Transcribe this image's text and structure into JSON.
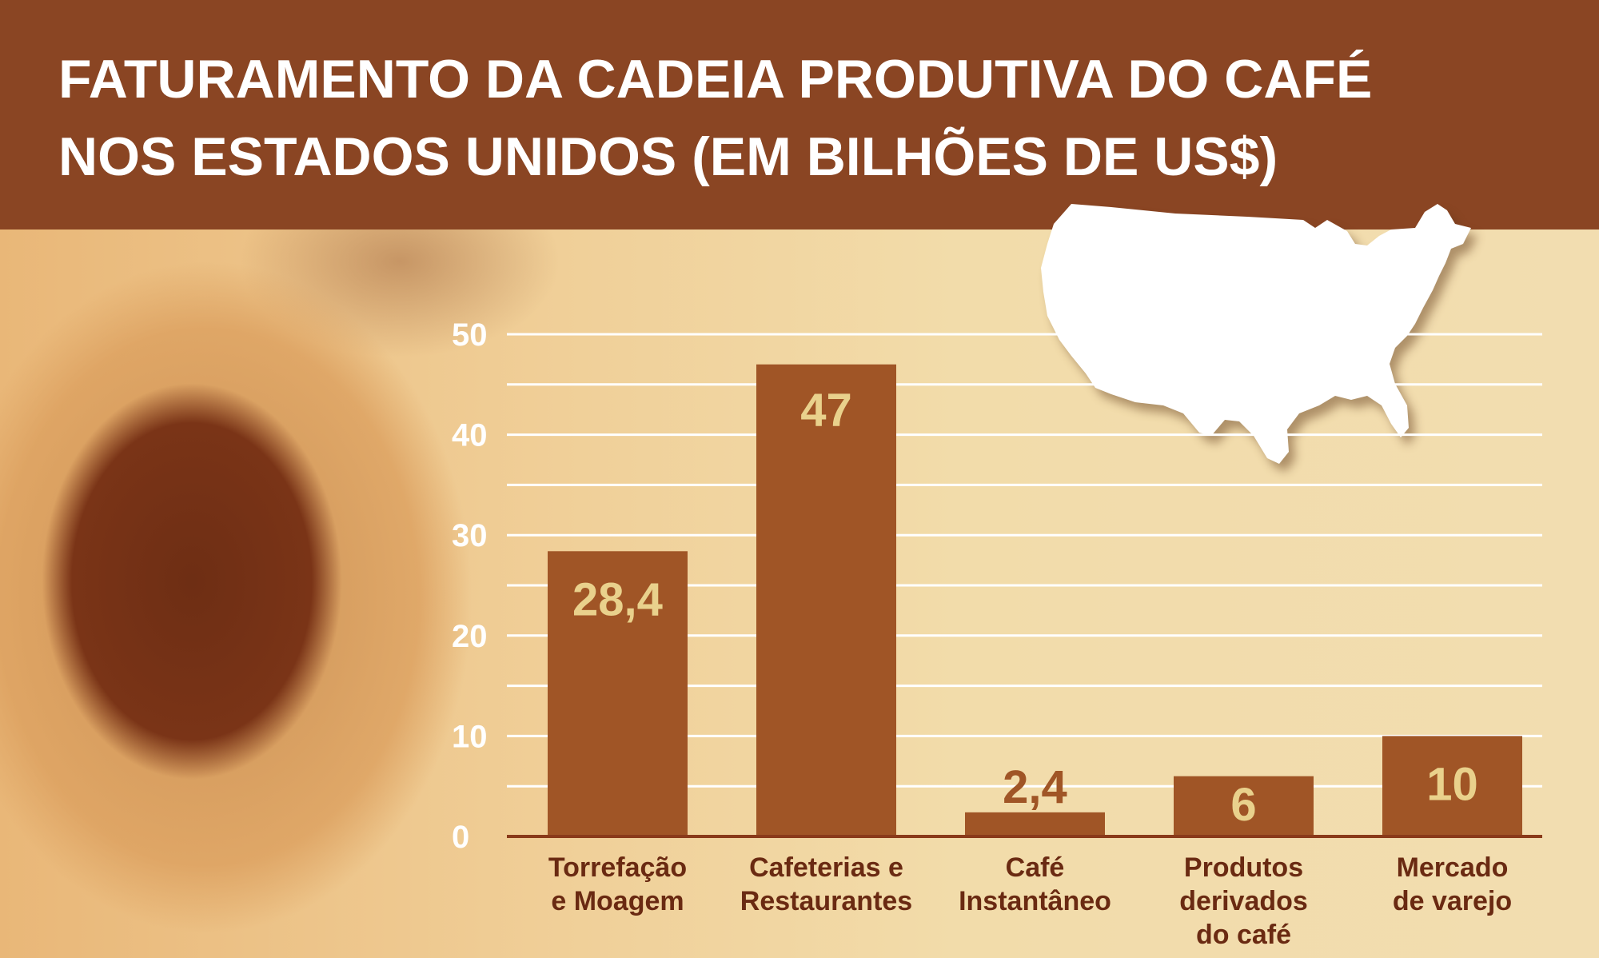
{
  "header": {
    "title_line1": "FATURAMENTO DA CADEIA PRODUTIVA DO CAFÉ",
    "title_line2": "NOS ESTADOS UNIDOS (EM BILHÕES DE US$)"
  },
  "colors": {
    "header": "#8a4523",
    "bar": "#a05526",
    "value_label": "#e9d18c",
    "value_label_outside": "#a05526",
    "axis_text": "#ffffff",
    "category_text": "#6a2a12"
  },
  "chart_data": {
    "type": "bar",
    "title": "FATURAMENTO DA CADEIA PRODUTIVA DO CAFÉ NOS ESTADOS UNIDOS (EM BILHÕES DE US$)",
    "categories": [
      [
        "Torrefação",
        "e Moagem"
      ],
      [
        "Cafeterias e",
        "Restaurantes"
      ],
      [
        "Café",
        "Instantâneo"
      ],
      [
        "Produtos",
        "derivados",
        "do café"
      ],
      [
        "Mercado",
        "de varejo"
      ]
    ],
    "values": [
      28.4,
      47,
      2.4,
      6,
      10
    ],
    "value_labels": [
      "28,4",
      "47",
      "2,4",
      "6",
      "10"
    ],
    "yticks": [
      0,
      10,
      20,
      30,
      40,
      50
    ],
    "ylim": [
      0,
      50
    ],
    "grid_step": 5,
    "xlabel": "",
    "ylabel": "",
    "grid": true
  }
}
